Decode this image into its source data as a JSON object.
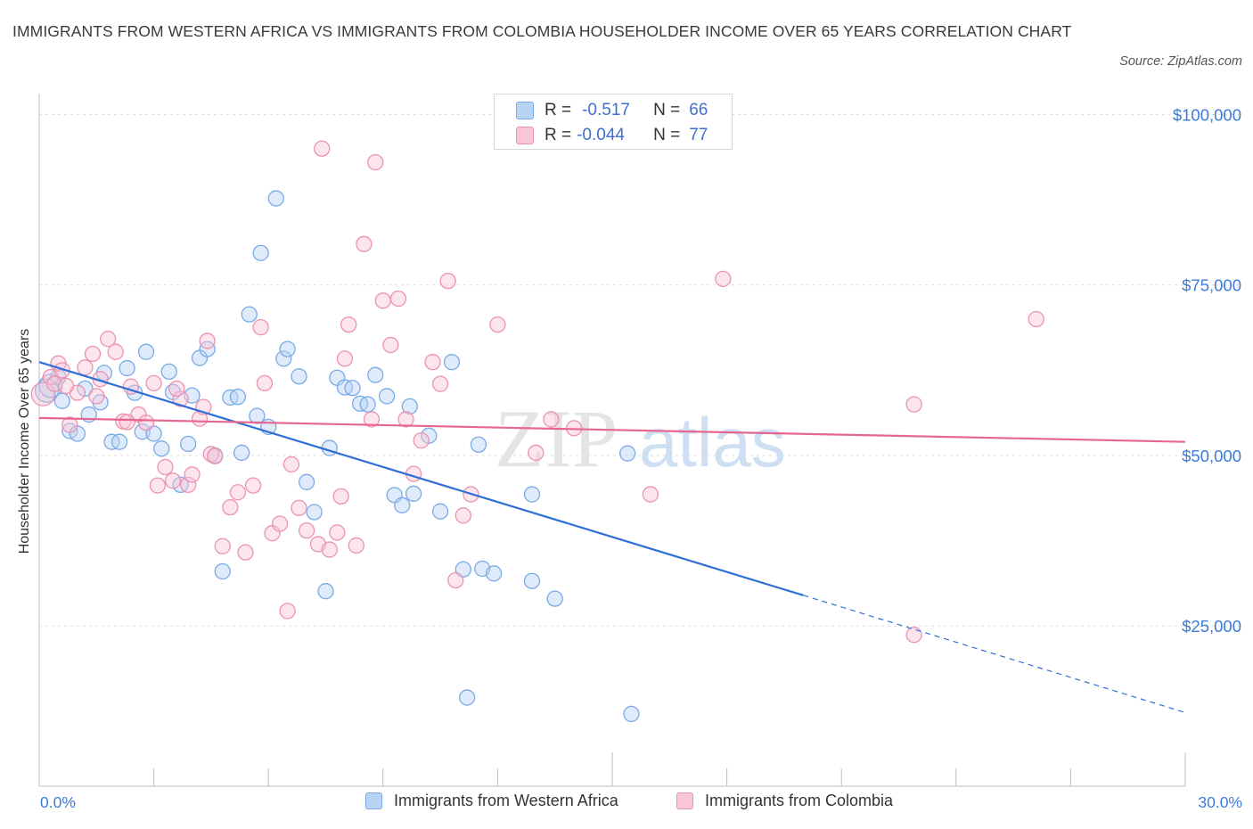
{
  "title": "IMMIGRANTS FROM WESTERN AFRICA VS IMMIGRANTS FROM COLOMBIA HOUSEHOLDER INCOME OVER 65 YEARS CORRELATION CHART",
  "source": "Source: ZipAtlas.com",
  "colors": {
    "blue_fill": "#b9d3f5",
    "blue_stroke": "#7aaae6",
    "blue_line": "#2f6fd6",
    "pink_fill": "#f9c6d6",
    "pink_stroke": "#eb93b0",
    "pink_line": "#e66690",
    "tick_text": "#3d7bd6"
  },
  "legend_top": {
    "rows": [
      {
        "r_label": "R =",
        "r_value": "-0.517",
        "n_label": "N =",
        "n_value": "66"
      },
      {
        "r_label": "R =",
        "r_value": "-0.044",
        "n_label": "N =",
        "n_value": "77"
      }
    ]
  },
  "legend_bottom": {
    "items": [
      "Immigrants from Western Africa",
      "Immigrants from Colombia"
    ]
  },
  "watermark": {
    "part1": "ZIP",
    "part2": "atlas"
  },
  "chart_data": {
    "type": "scatter",
    "title": "IMMIGRANTS FROM WESTERN AFRICA VS IMMIGRANTS FROM COLOMBIA HOUSEHOLDER INCOME OVER 65 YEARS CORRELATION CHART",
    "xlabel": "",
    "ylabel": "Householder Income Over 65 years",
    "xlim": [
      0,
      30
    ],
    "ylim": [
      1500,
      101500
    ],
    "x_tick_labels": [
      "0.0%",
      "30.0%"
    ],
    "y_ticks": [
      25000,
      50000,
      75000,
      100000
    ],
    "y_tick_labels": [
      "$25,000",
      "$50,000",
      "$75,000",
      "$100,000"
    ],
    "grid": "horizontal dashed",
    "legend_position": "top-center",
    "series": [
      {
        "name": "Immigrants from Western Africa",
        "color": "#b9d3f5",
        "trend": {
          "x_start": 0,
          "y_start": 63700,
          "x_end": 20.0,
          "y_end": 29500,
          "dashed_to_x": 30,
          "dashed_to_y": 12300
        },
        "points": [
          [
            0.2,
            59500
          ],
          [
            0.3,
            60200
          ],
          [
            0.5,
            61500
          ],
          [
            0.6,
            58000
          ],
          [
            0.8,
            53600
          ],
          [
            1.0,
            53200
          ],
          [
            1.2,
            59800
          ],
          [
            1.3,
            56000
          ],
          [
            1.6,
            57800
          ],
          [
            1.7,
            62100
          ],
          [
            1.9,
            52000
          ],
          [
            2.1,
            52000
          ],
          [
            2.3,
            62800
          ],
          [
            2.5,
            59200
          ],
          [
            2.7,
            53500
          ],
          [
            2.8,
            65200
          ],
          [
            3.0,
            53200
          ],
          [
            3.2,
            51000
          ],
          [
            3.4,
            62300
          ],
          [
            3.5,
            59300
          ],
          [
            3.7,
            45700
          ],
          [
            3.9,
            51700
          ],
          [
            4.0,
            58800
          ],
          [
            4.2,
            64300
          ],
          [
            4.4,
            65600
          ],
          [
            4.6,
            50000
          ],
          [
            4.8,
            33000
          ],
          [
            5.0,
            58500
          ],
          [
            5.2,
            58600
          ],
          [
            5.3,
            50400
          ],
          [
            5.5,
            70700
          ],
          [
            5.7,
            55800
          ],
          [
            5.8,
            79700
          ],
          [
            6.0,
            54200
          ],
          [
            6.2,
            87700
          ],
          [
            6.4,
            64200
          ],
          [
            6.5,
            65600
          ],
          [
            6.8,
            61600
          ],
          [
            7.0,
            46100
          ],
          [
            7.2,
            41700
          ],
          [
            7.5,
            30100
          ],
          [
            7.6,
            51100
          ],
          [
            7.8,
            61400
          ],
          [
            8.0,
            60000
          ],
          [
            8.2,
            59900
          ],
          [
            8.4,
            57600
          ],
          [
            8.6,
            57500
          ],
          [
            8.8,
            61800
          ],
          [
            9.1,
            58700
          ],
          [
            9.3,
            44200
          ],
          [
            9.5,
            42700
          ],
          [
            9.7,
            57200
          ],
          [
            9.8,
            44400
          ],
          [
            10.2,
            52900
          ],
          [
            10.5,
            41800
          ],
          [
            10.8,
            63700
          ],
          [
            11.1,
            33300
          ],
          [
            11.2,
            14500
          ],
          [
            11.5,
            51600
          ],
          [
            11.6,
            33400
          ],
          [
            11.9,
            32700
          ],
          [
            12.9,
            44300
          ],
          [
            12.9,
            31600
          ],
          [
            13.5,
            29000
          ],
          [
            15.4,
            50300
          ],
          [
            15.5,
            12100
          ]
        ]
      },
      {
        "name": "Immigrants from Colombia",
        "color": "#f9c6d6",
        "trend": {
          "x_start": 0,
          "y_start": 55500,
          "x_end": 30,
          "y_end": 52000
        },
        "points": [
          [
            0.1,
            59000
          ],
          [
            0.3,
            61500
          ],
          [
            0.5,
            63500
          ],
          [
            0.6,
            62500
          ],
          [
            0.8,
            54500
          ],
          [
            1.0,
            59200
          ],
          [
            1.2,
            62900
          ],
          [
            1.4,
            64900
          ],
          [
            1.6,
            61200
          ],
          [
            1.8,
            67100
          ],
          [
            2.0,
            65200
          ],
          [
            2.2,
            55000
          ],
          [
            2.4,
            60100
          ],
          [
            2.6,
            56000
          ],
          [
            2.8,
            54800
          ],
          [
            3.0,
            60600
          ],
          [
            3.1,
            45600
          ],
          [
            3.3,
            48300
          ],
          [
            3.5,
            46300
          ],
          [
            3.7,
            58300
          ],
          [
            3.9,
            45700
          ],
          [
            4.0,
            47200
          ],
          [
            4.2,
            55400
          ],
          [
            4.4,
            66800
          ],
          [
            4.5,
            50200
          ],
          [
            4.6,
            49900
          ],
          [
            4.8,
            36700
          ],
          [
            5.0,
            42400
          ],
          [
            5.2,
            44600
          ],
          [
            5.4,
            35800
          ],
          [
            5.6,
            45600
          ],
          [
            5.8,
            68800
          ],
          [
            5.9,
            60600
          ],
          [
            6.1,
            38600
          ],
          [
            6.3,
            40000
          ],
          [
            6.5,
            27200
          ],
          [
            6.6,
            48700
          ],
          [
            6.8,
            42300
          ],
          [
            7.0,
            39000
          ],
          [
            7.3,
            37000
          ],
          [
            7.4,
            95000
          ],
          [
            7.6,
            36200
          ],
          [
            7.8,
            38700
          ],
          [
            7.9,
            44000
          ],
          [
            8.0,
            64200
          ],
          [
            8.1,
            69200
          ],
          [
            8.3,
            36800
          ],
          [
            8.5,
            81000
          ],
          [
            8.7,
            55300
          ],
          [
            8.8,
            93000
          ],
          [
            9.0,
            72700
          ],
          [
            9.2,
            66200
          ],
          [
            9.4,
            73000
          ],
          [
            9.6,
            55300
          ],
          [
            9.8,
            47300
          ],
          [
            10.0,
            52200
          ],
          [
            10.3,
            63700
          ],
          [
            10.5,
            60500
          ],
          [
            10.7,
            75600
          ],
          [
            10.9,
            31700
          ],
          [
            11.1,
            41200
          ],
          [
            11.3,
            44300
          ],
          [
            12.0,
            69200
          ],
          [
            13.0,
            50400
          ],
          [
            13.4,
            55300
          ],
          [
            14.0,
            54000
          ],
          [
            16.0,
            44300
          ],
          [
            17.9,
            75900
          ],
          [
            22.9,
            57500
          ],
          [
            22.9,
            23700
          ],
          [
            26.1,
            70000
          ],
          [
            0.4,
            60500
          ],
          [
            0.7,
            60200
          ],
          [
            1.5,
            58700
          ],
          [
            2.3,
            54900
          ],
          [
            4.3,
            57100
          ],
          [
            3.6,
            59800
          ]
        ]
      }
    ]
  }
}
